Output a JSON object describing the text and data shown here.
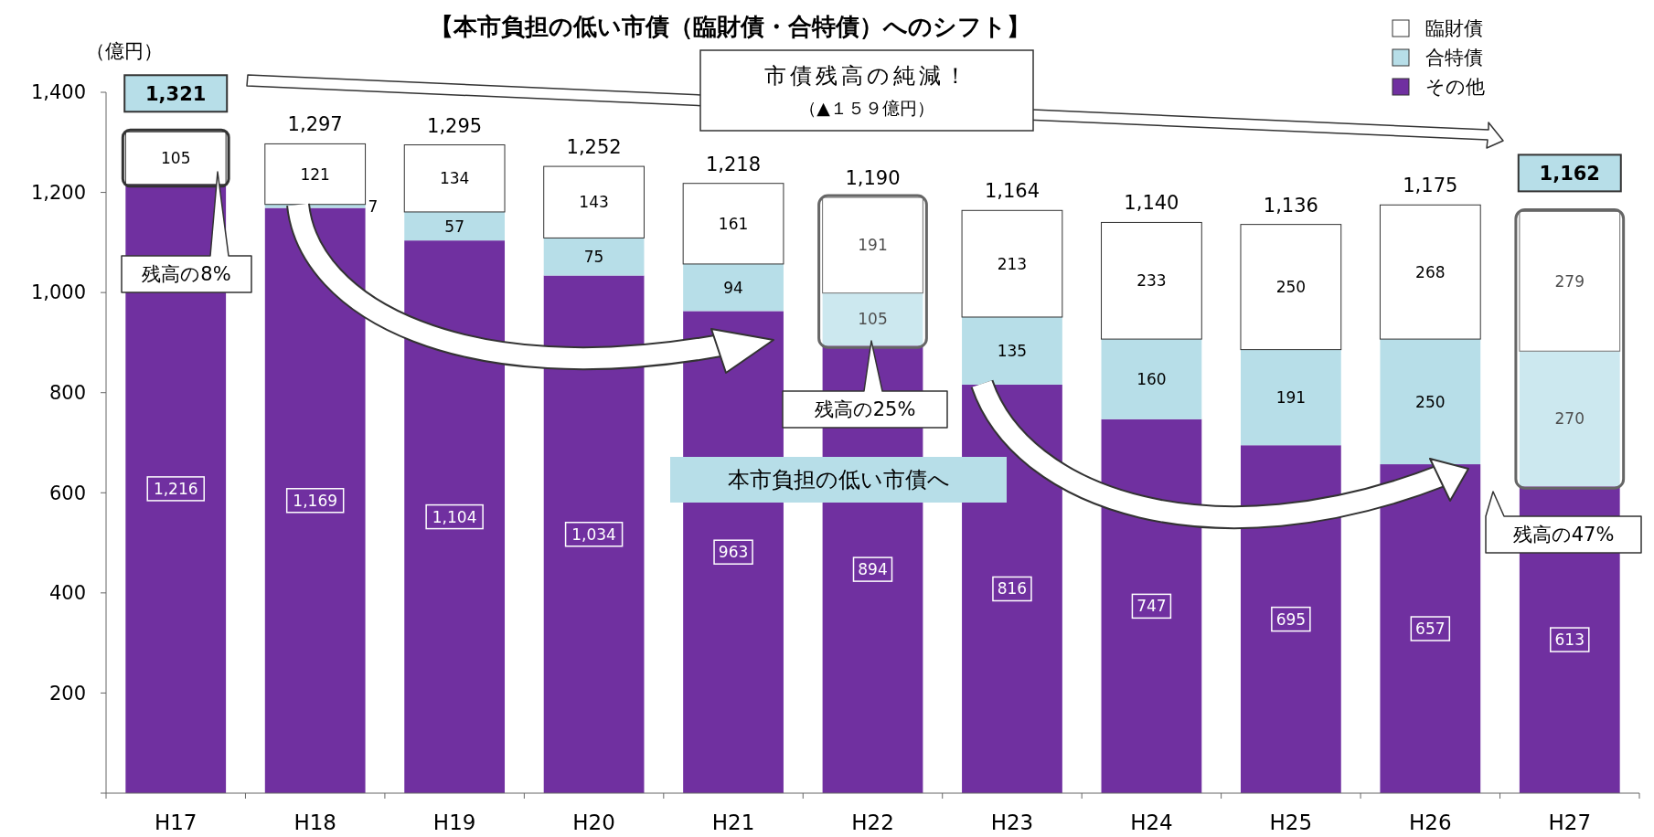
{
  "chart_data": {
    "type": "bar",
    "title": "【本市負担の低い市債（臨財債・合特債）へのシフト】",
    "ylabel": "（億円）",
    "stacked": true,
    "categories": [
      "H17",
      "H18",
      "H19",
      "H20",
      "H21",
      "H22",
      "H23",
      "H24",
      "H25",
      "H26",
      "H27"
    ],
    "series": [
      {
        "name": "その他",
        "color": "#7030a0",
        "values": [
          1216,
          1169,
          1104,
          1034,
          963,
          894,
          816,
          747,
          695,
          657,
          613
        ],
        "value_labels": [
          "1,216",
          "1,169",
          "1,104",
          "1,034",
          "963",
          "894",
          "816",
          "747",
          "695",
          "657",
          "613"
        ]
      },
      {
        "name": "合特債",
        "color": "#b7dee8",
        "values": [
          0,
          7,
          57,
          75,
          94,
          105,
          135,
          160,
          191,
          250,
          270
        ],
        "value_labels": [
          null,
          "7",
          "57",
          "75",
          "94",
          "105",
          "135",
          "160",
          "191",
          "250",
          "270"
        ]
      },
      {
        "name": "臨財債",
        "color": "#ffffff",
        "values": [
          105,
          121,
          134,
          143,
          161,
          191,
          213,
          233,
          250,
          268,
          279
        ],
        "value_labels": [
          "105",
          "121",
          "134",
          "143",
          "161",
          "191",
          "213",
          "233",
          "250",
          "268",
          "279"
        ]
      }
    ],
    "totals": [
      "1,321",
      "1,297",
      "1,295",
      "1,252",
      "1,218",
      "1,190",
      "1,164",
      "1,140",
      "1,136",
      "1,175",
      "1,162"
    ],
    "ylim": [
      0,
      1400
    ],
    "yticks": [
      {
        "value": 0,
        "label": null
      },
      {
        "value": 200,
        "label": "200"
      },
      {
        "value": 400,
        "label": "400"
      },
      {
        "value": 600,
        "label": "600"
      },
      {
        "value": 800,
        "label": "800"
      },
      {
        "value": 1000,
        "label": "1,000"
      },
      {
        "value": 1200,
        "label": "1,200"
      },
      {
        "value": 1400,
        "label": "1,400"
      }
    ],
    "legend": "top right",
    "grid": false,
    "annotations": [
      "市債残高の純減！",
      "（▲１５９億円）",
      "残高の8%",
      "残高の25%",
      "残高の47%",
      "本市負担の低い市債へ"
    ]
  }
}
